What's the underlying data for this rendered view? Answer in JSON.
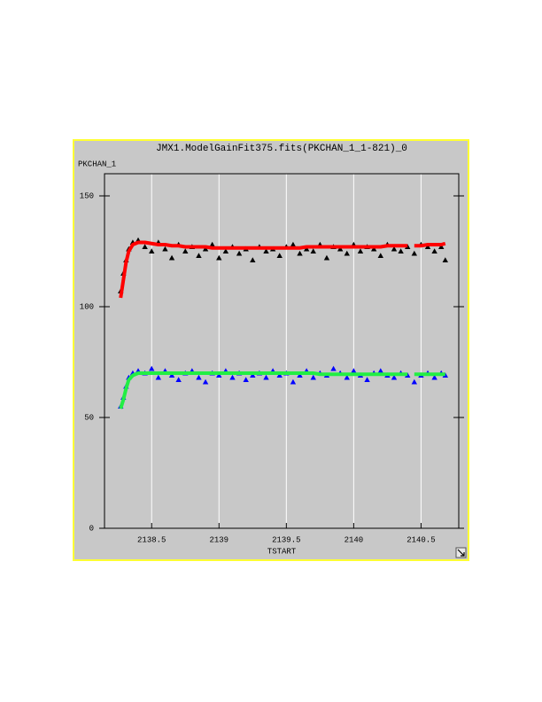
{
  "chart_data": {
    "type": "scatter",
    "title": "JMX1.ModelGainFit375.fits(PKCHAN_1_1-821)_0",
    "y_label": "PKCHAN_1",
    "x_label": "TSTART",
    "x": [
      2138.27,
      2138.29,
      2138.31,
      2138.33,
      2138.36,
      2138.4,
      2138.45,
      2138.5,
      2138.55,
      2138.6,
      2138.65,
      2138.7,
      2138.75,
      2138.8,
      2138.85,
      2138.9,
      2138.95,
      2139,
      2139.05,
      2139.1,
      2139.15,
      2139.2,
      2139.25,
      2139.3,
      2139.35,
      2139.4,
      2139.45,
      2139.5,
      2139.55,
      2139.6,
      2139.65,
      2139.7,
      2139.75,
      2139.8,
      2139.85,
      2139.9,
      2139.95,
      2140,
      2140.05,
      2140.1,
      2140.15,
      2140.2,
      2140.25,
      2140.3,
      2140.35,
      2140.4,
      2140.42,
      2140.45,
      2140.5,
      2140.55,
      2140.6,
      2140.65,
      2140.68
    ],
    "series": [
      {
        "color": "#000000",
        "mode": "markers",
        "marker": "triangle",
        "values": [
          107,
          115,
          121,
          126,
          129,
          130,
          127,
          125,
          129,
          126,
          122,
          128,
          125,
          127,
          123,
          126,
          128,
          122,
          125,
          127,
          124,
          126,
          121,
          127,
          125,
          126,
          123,
          127,
          128,
          124,
          126,
          125,
          128,
          122,
          127,
          126,
          124,
          128,
          125,
          127,
          126,
          123,
          128,
          126,
          125,
          127,
          null,
          124,
          128,
          127,
          125,
          127,
          121
        ]
      },
      {
        "color": "#ff0000",
        "mode": "line",
        "values": [
          104,
          112,
          120,
          125,
          128,
          129,
          129,
          128.5,
          128,
          128,
          127.5,
          127.5,
          127,
          127,
          127,
          127,
          126.5,
          126.5,
          126.5,
          126.5,
          126.5,
          126.5,
          126.5,
          126.5,
          126.5,
          126.5,
          126.5,
          126.5,
          126.5,
          126.5,
          127,
          127,
          127,
          127,
          127,
          127,
          127,
          127,
          127,
          127,
          127,
          127,
          127.5,
          127.5,
          127.5,
          127.5,
          null,
          127.5,
          127.5,
          128,
          128,
          128,
          128.5
        ]
      },
      {
        "color": "#0000ff",
        "mode": "markers",
        "marker": "triangle",
        "values": [
          55,
          59,
          64,
          68,
          70,
          71,
          70,
          72,
          68,
          71,
          69,
          67,
          70,
          71,
          68,
          66,
          70,
          69,
          71,
          68,
          70,
          67,
          69,
          70,
          68,
          71,
          69,
          70,
          66,
          69,
          71,
          68,
          70,
          69,
          72,
          70,
          68,
          71,
          69,
          67,
          70,
          71,
          69,
          68,
          70,
          69,
          null,
          66,
          69,
          70,
          68,
          70,
          69
        ]
      },
      {
        "color": "#22ee44",
        "mode": "line",
        "values": [
          54,
          58,
          63,
          67,
          69,
          70,
          70,
          70,
          70,
          70,
          70,
          70,
          70,
          70,
          70,
          70,
          70,
          70,
          70,
          70,
          70,
          70,
          70,
          70,
          70,
          70,
          70,
          70,
          70,
          70,
          70,
          70,
          69.5,
          69.5,
          69.5,
          69.5,
          69.5,
          69.5,
          69.5,
          69.5,
          69.5,
          69.5,
          69.5,
          69.5,
          69.5,
          69.5,
          null,
          69.5,
          69.5,
          69.5,
          69.5,
          69.5,
          69.5
        ]
      }
    ],
    "xlim": [
      2138.15,
      2140.78
    ],
    "xticks": [
      2138.5,
      2139,
      2139.5,
      2140,
      2140.5
    ],
    "ylim": [
      0,
      160
    ],
    "yticks": [
      0,
      50,
      100,
      150
    ],
    "grid": "x"
  }
}
